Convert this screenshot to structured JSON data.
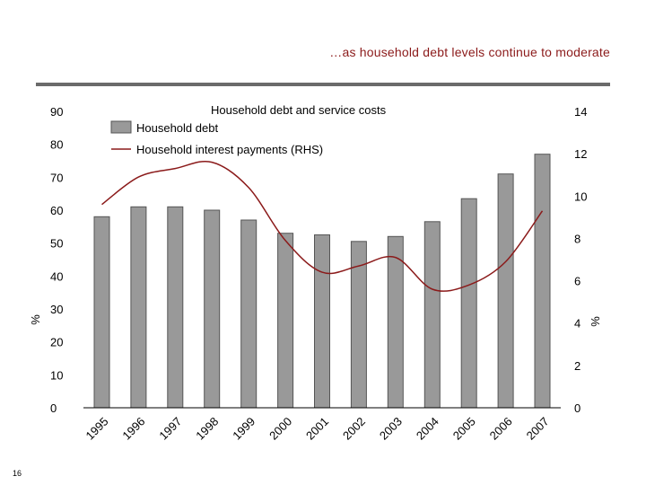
{
  "slide": {
    "heading": "…as household debt levels continue to moderate",
    "page_number": "16"
  },
  "colors": {
    "heading": "#8b1a1a",
    "bar_fill": "#999999",
    "bar_stroke": "#555555",
    "line": "#8b1a1a",
    "rule": "#6b6b6b"
  },
  "chart_data": {
    "type": "bar",
    "title": "Household debt and service costs",
    "categories": [
      "1995",
      "1996",
      "1997",
      "1998",
      "1999",
      "2000",
      "2001",
      "2002",
      "2003",
      "2004",
      "2005",
      "2006",
      "2007"
    ],
    "series": [
      {
        "name": "Household debt",
        "type": "bar",
        "axis": "left",
        "values": [
          58,
          61,
          61,
          60,
          57,
          53,
          52.5,
          50.5,
          52,
          56.5,
          63.5,
          71,
          77
        ]
      },
      {
        "name": "Household interest payments  (RHS)",
        "type": "line",
        "axis": "right",
        "values": [
          9.6,
          10.9,
          11.3,
          11.6,
          10.4,
          7.9,
          6.4,
          6.7,
          7.1,
          5.6,
          5.8,
          6.9,
          9.3
        ]
      }
    ],
    "ylabel": "%",
    "y2label": "%",
    "ylim": [
      0,
      90
    ],
    "y2lim": [
      0,
      14
    ],
    "yticks": [
      "0",
      "10",
      "20",
      "30",
      "40",
      "50",
      "60",
      "70",
      "80",
      "90"
    ],
    "y2ticks": [
      "0",
      "2",
      "4",
      "6",
      "8",
      "10",
      "12",
      "14"
    ],
    "grid": false,
    "legend": "top-left"
  }
}
